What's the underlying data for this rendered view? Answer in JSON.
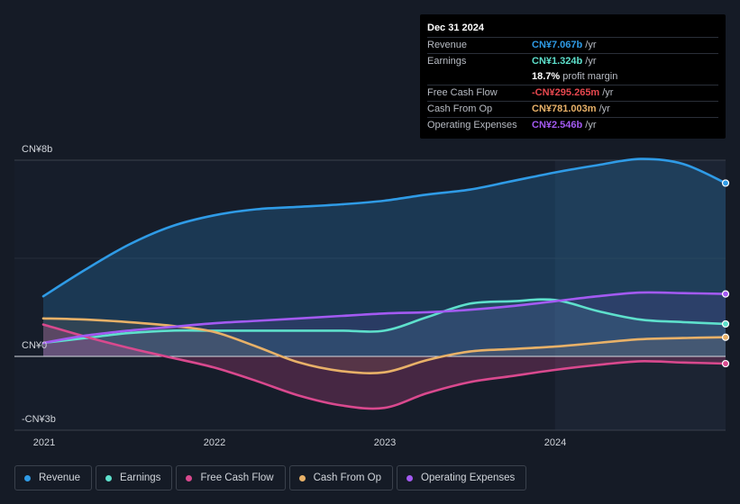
{
  "chart_data": {
    "type": "area",
    "title": "",
    "xlabel": "",
    "ylabel": "",
    "ylim": [
      -3,
      8
    ],
    "y_tick_labels": [
      {
        "value": 8,
        "label": "CN¥8b"
      },
      {
        "value": 0,
        "label": "CN¥0"
      },
      {
        "value": -3,
        "label": "-CN¥3b"
      }
    ],
    "x_ticks": [
      {
        "value": 2021.0,
        "label": "2021"
      },
      {
        "value": 2022.0,
        "label": "2022"
      },
      {
        "value": 2023.0,
        "label": "2023"
      },
      {
        "value": 2024.0,
        "label": "2024"
      }
    ],
    "x_range": [
      2021.0,
      2025.0
    ],
    "forecast_start": 2024.0,
    "series": [
      {
        "key": "revenue",
        "name": "Revenue",
        "color": "#2f9be6",
        "x": [
          2021.0,
          2021.25,
          2021.5,
          2021.75,
          2022.0,
          2022.25,
          2022.5,
          2022.75,
          2023.0,
          2023.25,
          2023.5,
          2023.75,
          2024.0,
          2024.25,
          2024.5,
          2024.75,
          2025.0
        ],
        "values": [
          2.45,
          3.55,
          4.55,
          5.3,
          5.75,
          6.0,
          6.1,
          6.2,
          6.35,
          6.6,
          6.8,
          7.15,
          7.5,
          7.8,
          8.05,
          7.85,
          7.067
        ]
      },
      {
        "key": "earnings",
        "name": "Earnings",
        "color": "#5ee0cc",
        "x": [
          2021.0,
          2021.25,
          2021.5,
          2021.75,
          2022.0,
          2022.25,
          2022.5,
          2022.75,
          2023.0,
          2023.25,
          2023.5,
          2023.75,
          2024.0,
          2024.25,
          2024.5,
          2024.75,
          2025.0
        ],
        "values": [
          0.55,
          0.75,
          0.95,
          1.05,
          1.05,
          1.05,
          1.05,
          1.05,
          1.05,
          1.6,
          2.15,
          2.25,
          2.3,
          1.85,
          1.5,
          1.4,
          1.324
        ]
      },
      {
        "key": "fcf",
        "name": "Free Cash Flow",
        "color": "#d9498e",
        "x": [
          2021.0,
          2021.25,
          2021.5,
          2021.75,
          2022.0,
          2022.25,
          2022.5,
          2022.75,
          2023.0,
          2023.25,
          2023.5,
          2023.75,
          2024.0,
          2024.25,
          2024.5,
          2024.75,
          2025.0
        ],
        "values": [
          1.3,
          0.8,
          0.35,
          -0.05,
          -0.45,
          -1.0,
          -1.6,
          -2.0,
          -2.1,
          -1.5,
          -1.05,
          -0.8,
          -0.55,
          -0.35,
          -0.2,
          -0.25,
          -0.295
        ]
      },
      {
        "key": "cfo",
        "name": "Cash From Op",
        "color": "#e8b168",
        "x": [
          2021.0,
          2021.25,
          2021.5,
          2021.75,
          2022.0,
          2022.25,
          2022.5,
          2022.75,
          2023.0,
          2023.25,
          2023.5,
          2023.75,
          2024.0,
          2024.25,
          2024.5,
          2024.75,
          2025.0
        ],
        "values": [
          1.55,
          1.5,
          1.4,
          1.25,
          1.0,
          0.4,
          -0.25,
          -0.6,
          -0.65,
          -0.15,
          0.2,
          0.3,
          0.4,
          0.55,
          0.7,
          0.75,
          0.781
        ]
      },
      {
        "key": "opex",
        "name": "Operating Expenses",
        "color": "#a35af2",
        "x": [
          2021.0,
          2021.25,
          2021.5,
          2021.75,
          2022.0,
          2022.25,
          2022.5,
          2022.75,
          2023.0,
          2023.25,
          2023.5,
          2023.75,
          2024.0,
          2024.25,
          2024.5,
          2024.75,
          2025.0
        ],
        "values": [
          0.55,
          0.85,
          1.05,
          1.2,
          1.35,
          1.45,
          1.55,
          1.65,
          1.75,
          1.8,
          1.9,
          2.05,
          2.25,
          2.45,
          2.6,
          2.58,
          2.546
        ]
      }
    ]
  },
  "tooltip": {
    "date": "Dec 31 2024",
    "rows": [
      {
        "label": "Revenue",
        "value": "CN¥7.067b",
        "unit": "/yr",
        "color": "#2f9be6"
      },
      {
        "label": "Earnings",
        "value": "CN¥1.324b",
        "unit": "/yr",
        "color": "#5ee0cc"
      },
      {
        "label": "",
        "value": "18.7%",
        "unit": "profit margin",
        "color": "#ffffff"
      },
      {
        "label": "Free Cash Flow",
        "value": "-CN¥295.265m",
        "unit": "/yr",
        "color": "#e8484f"
      },
      {
        "label": "Cash From Op",
        "value": "CN¥781.003m",
        "unit": "/yr",
        "color": "#e8b168"
      },
      {
        "label": "Operating Expenses",
        "value": "CN¥2.546b",
        "unit": "/yr",
        "color": "#a35af2"
      }
    ]
  },
  "legend": [
    {
      "label": "Revenue",
      "color": "#2f9be6"
    },
    {
      "label": "Earnings",
      "color": "#5ee0cc"
    },
    {
      "label": "Free Cash Flow",
      "color": "#d9498e"
    },
    {
      "label": "Cash From Op",
      "color": "#e8b168"
    },
    {
      "label": "Operating Expenses",
      "color": "#a35af2"
    }
  ]
}
